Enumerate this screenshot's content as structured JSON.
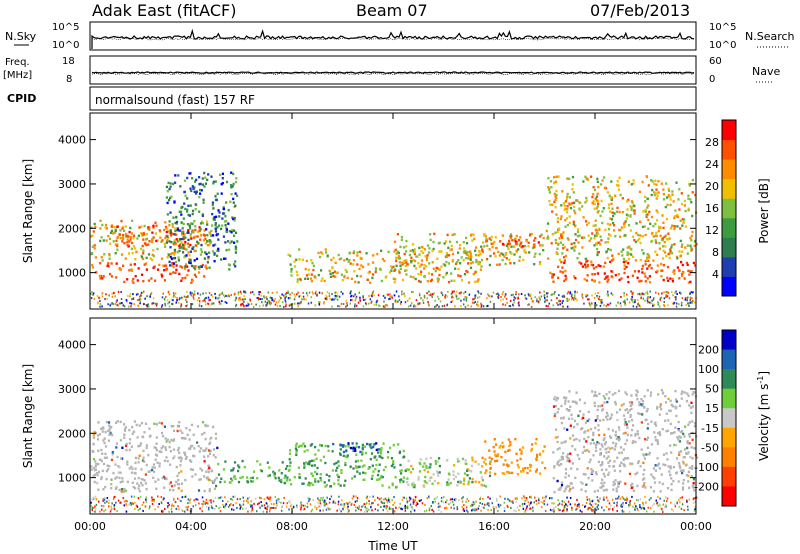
{
  "header": {
    "station": "Adak East (fitACF)",
    "beam": "Beam 07",
    "date": "07/Feb/2013"
  },
  "top_panel_labels": {
    "nsky": "N.Sky",
    "nsky_hi": "10^5",
    "nsky_lo": "10^0",
    "nsearch": "N.Search",
    "nsearch_hi": "10^5",
    "nsearch_lo": "10^0",
    "freq_line1": "Freq.",
    "freq_line2": "[MHz]",
    "freq_hi": "18",
    "freq_lo": "8",
    "nave": "Nave",
    "nave_hi": "60",
    "nave_lo": "0",
    "cpid": "CPID",
    "cpid_value": "normalsound (fast) 157 RF"
  },
  "colors": {
    "power_scale": [
      "#0000ff",
      "#1f3fb0",
      "#2e7d4f",
      "#3f9b3f",
      "#7fbf3f",
      "#f0c000",
      "#ff8c00",
      "#ff5000",
      "#ff0000"
    ],
    "velocity_scale": [
      "#0000c8",
      "#1c64b4",
      "#2e8b57",
      "#6ecf3a",
      "#c8c8c8",
      "#ffa500",
      "#ff7f00",
      "#ff4000",
      "#ff0000"
    ],
    "ground_scatter": "#b4b4b4"
  },
  "chart_data": [
    {
      "type": "heatmap",
      "panel": "power",
      "ylabel": "Slant Range [km]",
      "xlabel": "",
      "x_ticks": [
        "00:00",
        "04:00",
        "08:00",
        "12:00",
        "16:00",
        "20:00",
        "00:00"
      ],
      "x_range_hours": [
        0,
        24
      ],
      "y_ticks": [
        1000,
        2000,
        3000,
        4000
      ],
      "y_range_km": [
        180,
        4600
      ],
      "colorbar": {
        "label": "Power [dB]",
        "ticks": [
          4,
          8,
          12,
          16,
          20,
          24,
          28
        ],
        "range": [
          0,
          32
        ]
      },
      "bands": [
        {
          "t0": 0,
          "t1": 4.6,
          "r0": 800,
          "r1": 1250,
          "level": "strong"
        },
        {
          "t0": 0,
          "t1": 4.8,
          "r0": 1300,
          "r1": 2200,
          "level": "medium"
        },
        {
          "t0": 1,
          "t1": 4.5,
          "r0": 1600,
          "r1": 2100,
          "level": "strong"
        },
        {
          "t0": 3,
          "t1": 5.8,
          "r0": 1100,
          "r1": 3300,
          "level": "weak"
        },
        {
          "t0": 7.8,
          "t1": 15.5,
          "r0": 800,
          "r1": 1550,
          "level": "medium"
        },
        {
          "t0": 12,
          "t1": 18,
          "r0": 1200,
          "r1": 1900,
          "level": "medium"
        },
        {
          "t0": 15.5,
          "t1": 18.0,
          "r0": 1600,
          "r1": 1850,
          "level": "strong"
        },
        {
          "t0": 18.0,
          "t1": 24,
          "r0": 800,
          "r1": 1300,
          "level": "strong"
        },
        {
          "t0": 18.0,
          "t1": 24,
          "r0": 1300,
          "r1": 3200,
          "level": "medium"
        }
      ]
    },
    {
      "type": "heatmap",
      "panel": "velocity",
      "ylabel": "Slant Range [km]",
      "xlabel": "Time UT",
      "x_ticks": [
        "00:00",
        "04:00",
        "08:00",
        "12:00",
        "16:00",
        "20:00",
        "00:00"
      ],
      "x_range_hours": [
        0,
        24
      ],
      "y_ticks": [
        1000,
        2000,
        3000,
        4000
      ],
      "y_range_km": [
        180,
        4600
      ],
      "colorbar": {
        "label": "Velocity",
        "unit_text": "m s",
        "unit_exp": "-1",
        "ticks": [
          200,
          100,
          50,
          15,
          -15,
          -50,
          -100,
          -200
        ]
      },
      "bands": [
        {
          "t0": 0,
          "t1": 5.0,
          "r0": 700,
          "r1": 2300,
          "kind": "ground"
        },
        {
          "t0": 5.0,
          "t1": 7.8,
          "r0": 900,
          "r1": 1400,
          "kind": "positive"
        },
        {
          "t0": 7.8,
          "t1": 12.5,
          "r0": 800,
          "r1": 1800,
          "kind": "positive"
        },
        {
          "t0": 9.5,
          "t1": 11.5,
          "r0": 1500,
          "r1": 1800,
          "kind": "strong_positive"
        },
        {
          "t0": 12.5,
          "t1": 16,
          "r0": 800,
          "r1": 1500,
          "kind": "mixed"
        },
        {
          "t0": 15.5,
          "t1": 18.0,
          "r0": 1100,
          "r1": 1900,
          "kind": "negative"
        },
        {
          "t0": 18.3,
          "t1": 24,
          "r0": 700,
          "r1": 3000,
          "kind": "ground"
        }
      ]
    }
  ]
}
